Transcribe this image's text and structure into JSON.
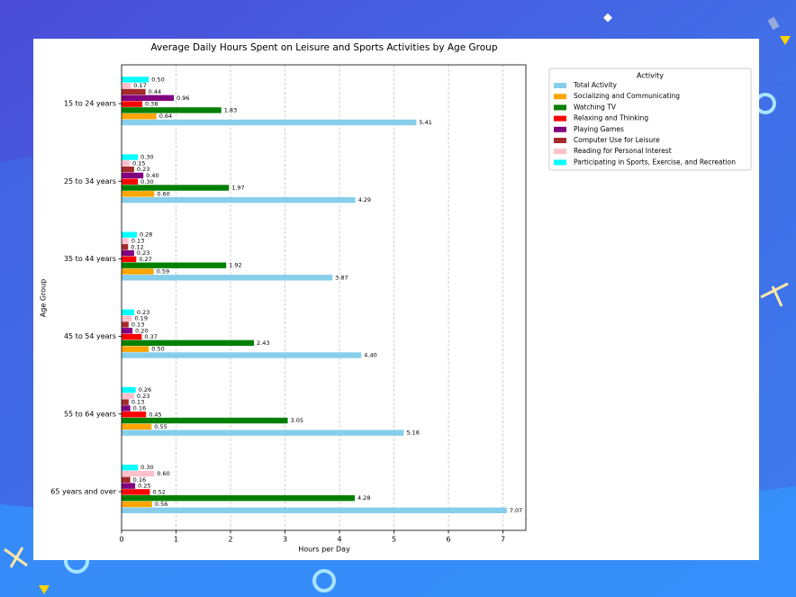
{
  "chart_data": {
    "type": "barh",
    "title": "Average Daily Hours Spent on Leisure and Sports Activities by Age Group",
    "xlabel": "Hours per Day",
    "ylabel": "Age Group",
    "legend_title": "Activity",
    "legend": "outside right",
    "categories": [
      "15 to 24 years",
      "25 to 34 years",
      "35 to 44 years",
      "45 to 54 years",
      "55 to 64 years",
      "65 years and over"
    ],
    "xlim": [
      0,
      7.42
    ],
    "xticks": [
      0,
      1,
      2,
      3,
      4,
      5,
      6,
      7
    ],
    "grid": true,
    "series": [
      {
        "name": "Total Activity",
        "color": "#87ceeb",
        "values": [
          5.41,
          4.29,
          3.87,
          4.4,
          5.18,
          7.07
        ],
        "value_labels": [
          "5.41",
          "4.29",
          "3.87",
          "4.40",
          "5.18",
          "7.07"
        ]
      },
      {
        "name": "Socializing and Communicating",
        "color": "#ffa500",
        "values": [
          0.64,
          0.6,
          0.59,
          0.5,
          0.55,
          0.56
        ],
        "value_labels": [
          "0.64",
          "0.60",
          "0.59",
          "0.50",
          "0.55",
          "0.56"
        ]
      },
      {
        "name": "Watching TV",
        "color": "#008000",
        "values": [
          1.83,
          1.97,
          1.92,
          2.43,
          3.05,
          4.28
        ],
        "value_labels": [
          "1.83",
          "1.97",
          "1.92",
          "2.43",
          "3.05",
          "4.28"
        ]
      },
      {
        "name": "Relaxing and Thinking",
        "color": "#ff0000",
        "values": [
          0.38,
          0.3,
          0.27,
          0.37,
          0.45,
          0.52
        ],
        "value_labels": [
          "0.38",
          "0.30",
          "0.27",
          "0.37",
          "0.45",
          "0.52"
        ]
      },
      {
        "name": "Playing Games",
        "color": "#800080",
        "values": [
          0.96,
          0.4,
          0.23,
          0.2,
          0.16,
          0.25
        ],
        "value_labels": [
          "0.96",
          "0.40",
          "0.23",
          "0.20",
          "0.16",
          "0.25"
        ]
      },
      {
        "name": "Computer Use for Leisure",
        "color": "#a52a2a",
        "values": [
          0.44,
          0.23,
          0.12,
          0.13,
          0.13,
          0.16
        ],
        "value_labels": [
          "0.44",
          "0.23",
          "0.12",
          "0.13",
          "0.13",
          "0.16"
        ]
      },
      {
        "name": "Reading for Personal Interest",
        "color": "#ffc0cb",
        "values": [
          0.17,
          0.15,
          0.13,
          0.19,
          0.23,
          0.6
        ],
        "value_labels": [
          "0.17",
          "0.15",
          "0.13",
          "0.19",
          "0.23",
          "0.60"
        ]
      },
      {
        "name": "Participating in Sports, Exercise, and Recreation",
        "color": "#00ffff",
        "values": [
          0.5,
          0.3,
          0.28,
          0.23,
          0.26,
          0.3
        ],
        "value_labels": [
          "0.50",
          "0.30",
          "0.28",
          "0.23",
          "0.26",
          "0.30"
        ]
      }
    ]
  }
}
